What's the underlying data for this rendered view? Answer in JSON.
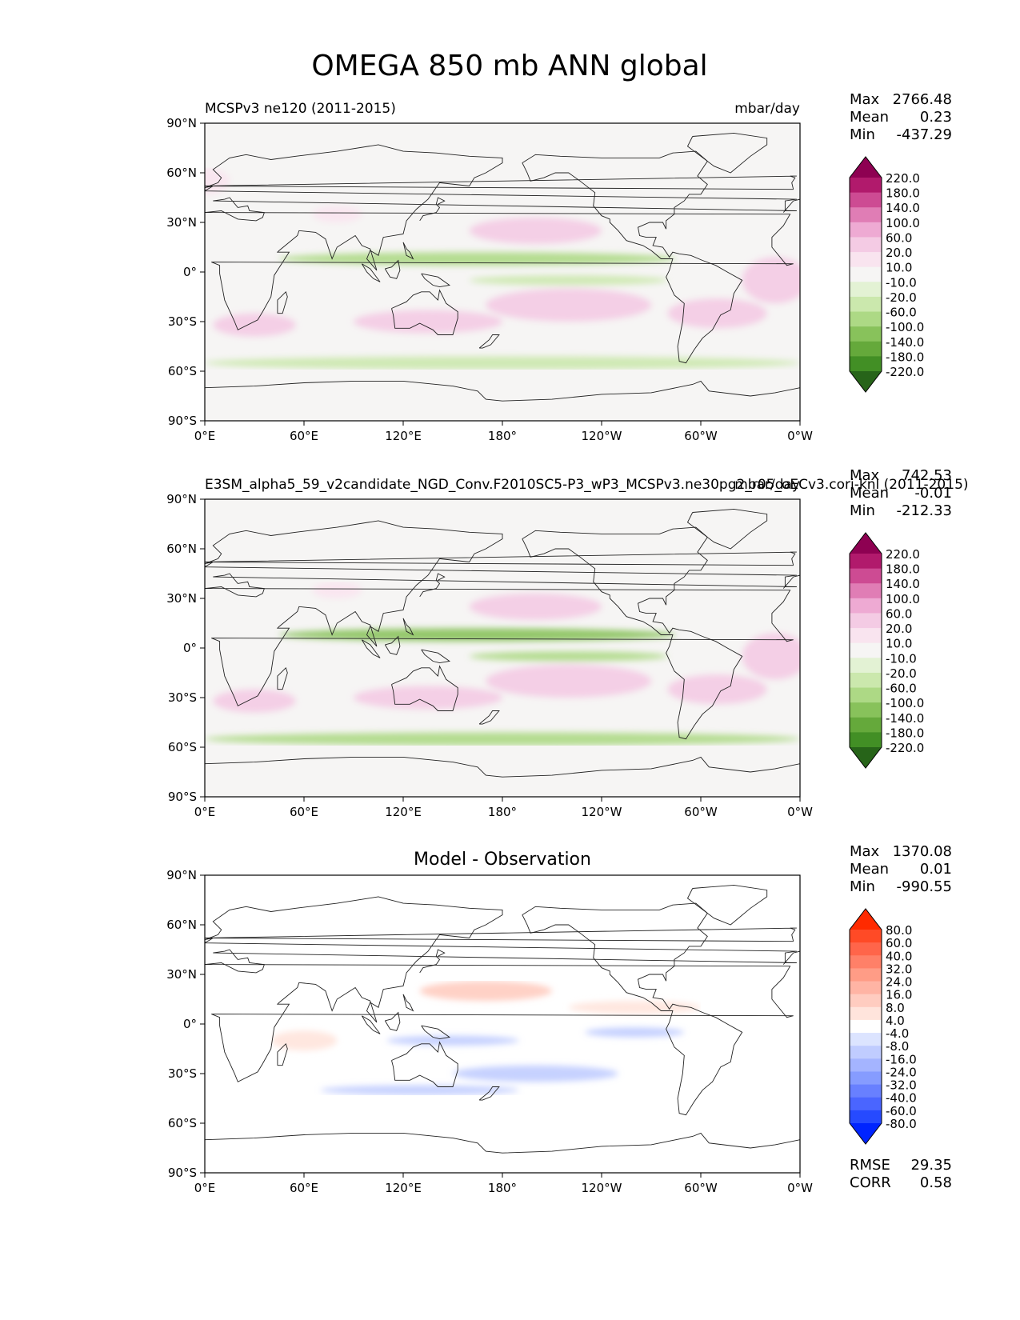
{
  "title": "OMEGA 850 mb ANN global",
  "units": "mbar/day",
  "panels": [
    {
      "id": "test",
      "title_left": "MCSPv3 ne120 (2011-2015)",
      "title_center": "",
      "title_right": "mbar/day",
      "stats": {
        "max_label": "Max",
        "max": "2766.48",
        "mean_label": "Mean",
        "mean": "0.23",
        "min_label": "Min",
        "min": "-437.29"
      },
      "colorbar": "omega"
    },
    {
      "id": "reference",
      "title_left": "E3SM_alpha5_59_v2candidate_NGD_Conv.F2010SC5-P3_wP3_MCSPv3.ne30pg2_r05_oECv3.cori-knl (2011-2015)",
      "title_center": "",
      "title_right": "mbar/day",
      "stats": {
        "max_label": "Max",
        "max": "742.53",
        "mean_label": "Mean",
        "mean": "-0.01",
        "min_label": "Min",
        "min": "-212.33"
      },
      "colorbar": "omega"
    },
    {
      "id": "difference",
      "title_left": "",
      "title_center": "Model - Observation",
      "title_right": "",
      "stats": {
        "max_label": "Max",
        "max": "1370.08",
        "mean_label": "Mean",
        "mean": "0.01",
        "min_label": "Min",
        "min": "-990.55"
      },
      "colorbar": "diff",
      "metrics": {
        "rmse_label": "RMSE",
        "rmse": "29.35",
        "corr_label": "CORR",
        "corr": "0.58"
      }
    }
  ],
  "axes": {
    "lon_ticks": [
      "0°E",
      "60°E",
      "120°E",
      "180°",
      "120°W",
      "60°W",
      "0°W"
    ],
    "lat_ticks": [
      "90°N",
      "60°N",
      "30°N",
      "0°",
      "30°S",
      "60°S",
      "90°S"
    ]
  },
  "colorbars": {
    "omega": {
      "levels": [
        "220.0",
        "180.0",
        "140.0",
        "100.0",
        "60.0",
        "20.0",
        "10.0",
        "-10.0",
        "-20.0",
        "-60.0",
        "-100.0",
        "-140.0",
        "-180.0",
        "-220.0"
      ],
      "colors": [
        "#8e0152",
        "#b11a6c",
        "#cd4b93",
        "#e07db5",
        "#eeaad3",
        "#f4cbe4",
        "#f9e4ef",
        "#f6f5f4",
        "#e3f2d4",
        "#cbe8ad",
        "#add985",
        "#88c25b",
        "#65a93b",
        "#428f25",
        "#276419"
      ]
    },
    "diff": {
      "levels": [
        "80.0",
        "60.0",
        "40.0",
        "32.0",
        "24.0",
        "16.0",
        "8.0",
        "4.0",
        "-4.0",
        "-8.0",
        "-16.0",
        "-24.0",
        "-32.0",
        "-40.0",
        "-60.0",
        "-80.0"
      ],
      "colors": [
        "#ff2a00",
        "#ff4a26",
        "#ff654a",
        "#ff8068",
        "#ff9c86",
        "#ffb4a4",
        "#ffccc0",
        "#ffe4dc",
        "#ffffff",
        "#dce4ff",
        "#c0ccff",
        "#a4b4ff",
        "#869cff",
        "#6880ff",
        "#4a65ff",
        "#264aff",
        "#0024ff"
      ]
    }
  },
  "chart_data": {
    "type": "heatmap",
    "title": "OMEGA 850 mb ANN global",
    "units": "mbar/day",
    "maps": [
      {
        "name": "MCSPv3 ne120 (2011-2015)",
        "max": 2766.48,
        "mean": 0.23,
        "min": -437.29
      },
      {
        "name": "E3SM_alpha5_59_v2candidate_NGD_Conv.F2010SC5-P3_wP3_MCSPv3.ne30pg2_r05_oECv3.cori-knl (2011-2015)",
        "max": 742.53,
        "mean": -0.01,
        "min": -212.33
      },
      {
        "name": "Model - Observation",
        "max": 1370.08,
        "mean": 0.01,
        "min": -990.55,
        "rmse": 29.35,
        "corr": 0.58
      }
    ],
    "x_range": [
      0,
      360
    ],
    "y_range": [
      -90,
      90
    ],
    "xlabel": "",
    "ylabel": ""
  }
}
